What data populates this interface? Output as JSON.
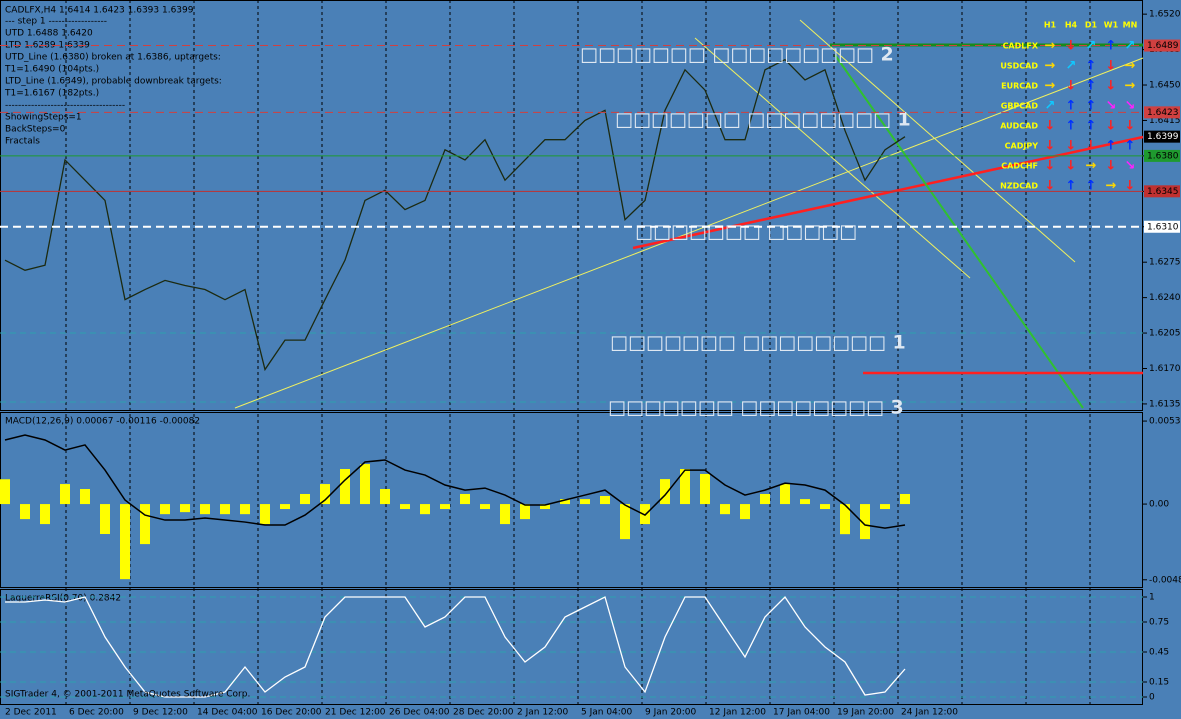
{
  "chart_data": [
    {
      "type": "line",
      "title": "CADLFX,H4  1.6414 1.6423 1.6393 1.6399",
      "info": [
        "---   step 1   ------------------",
        "UTD  1.6488  1.6420",
        "LTD  1.6289  1.6339",
        "UTD_Line (1.6380) broken at 1.6386, uptargets:",
        "T1=1.6490 (104pts.)",
        "LTD_Line (1.6349), probable downbreak targets:",
        "T1=1.6167 (182pts.)",
        "-------------------------------------",
        "ShowingSteps=1",
        "BackSteps=0",
        "Fractals"
      ],
      "color": "#1c2a10",
      "values": [
        1.6277,
        1.6267,
        1.6272,
        1.6376,
        1.6356,
        1.6336,
        1.6238,
        1.6248,
        1.6257,
        1.6252,
        1.6248,
        1.6238,
        1.6248,
        1.6169,
        1.6198,
        1.6198,
        1.6238,
        1.6277,
        1.6336,
        1.6346,
        1.6327,
        1.6336,
        1.6386,
        1.6376,
        1.6396,
        1.6356,
        1.6376,
        1.6396,
        1.6396,
        1.6415,
        1.6425,
        1.6317,
        1.6336,
        1.6425,
        1.6465,
        1.6445,
        1.6396,
        1.6396,
        1.6465,
        1.6475,
        1.6455,
        1.6465,
        1.6405,
        1.6356,
        1.6386,
        1.6399
      ],
      "ylim": [
        1.6129,
        1.6532
      ],
      "yticks": [
        {
          "value": 1.652,
          "label": "1.6520"
        },
        1.6485,
        {
          "value": 1.645,
          "label": "1.6450"
        },
        1.6415,
        {
          "value": 1.638,
          "label": "1.6380"
        },
        1.6345,
        {
          "value": 1.631,
          "label": "1.6310"
        },
        1.6275,
        {
          "value": 1.624,
          "label": "1.6240"
        },
        1.6205,
        {
          "value": 1.617,
          "label": "1.6170"
        },
        1.6135
      ],
      "levels": [
        {
          "value": 1.6489,
          "label": "1.6489",
          "color": "#d04040",
          "style": "dashed"
        },
        {
          "value": 1.6423,
          "label": "1.6423",
          "color": "#d04040",
          "style": "dashed"
        },
        {
          "value": 1.6399,
          "label": "1.6399",
          "color": "#000000",
          "style": "none"
        },
        {
          "value": 1.638,
          "label": "1.6380",
          "color": "#1f9a2f",
          "style": "solid"
        },
        {
          "value": 1.6345,
          "label": "1.6345",
          "color": "#c03030",
          "style": "solid"
        },
        {
          "value": 1.631,
          "label": "1.6310",
          "color": "#ffffff",
          "style": "dashed"
        }
      ],
      "zone_labels": [
        "□□□□□□□ □□□□□□□□□ 2",
        "□□□□□□□ □□□□□□□□ 1",
        "□□□□□□□ □□□□□",
        "□□□□□□□ □□□□□□□□ 1",
        "□□□□□□□ □□□□□□□□ 3"
      ]
    },
    {
      "type": "macd",
      "title": "MACD(12,26,9) 0.00067 -0.00116 -0.00082",
      "color": "#ffff00",
      "values": [
        0.0016,
        -0.00097,
        -0.00129,
        0.00129,
        0.00097,
        -0.00193,
        -0.00484,
        -0.00258,
        -0.00065,
        -0.00052,
        -0.00065,
        -0.00065,
        -0.00065,
        -0.00129,
        -0.00032,
        0.00065,
        0.00129,
        0.00226,
        0.00258,
        0.00097,
        -0.00032,
        -0.00065,
        -0.00032,
        0.00065,
        -0.00032,
        -0.00129,
        -0.00097,
        -0.00032,
        0.00032,
        0.00032,
        0.00052,
        -0.00226,
        -0.00129,
        0.00161,
        0.00226,
        0.00194,
        -0.00065,
        -0.00097,
        0.00065,
        0.00129,
        0.00032,
        -0.00032,
        -0.00194,
        -0.00226,
        -0.00032,
        0.00065
      ],
      "series": [
        {
          "color": "#000000",
          "values": [
            0.00413,
            0.00445,
            0.00413,
            0.00348,
            0.00381,
            0.00219,
            0.00026,
            -0.00071,
            -0.00103,
            -0.00103,
            -0.0009,
            -0.00103,
            -0.00116,
            -0.00135,
            -0.00135,
            -0.00071,
            0.00026,
            0.00155,
            0.00271,
            0.00284,
            0.00219,
            0.00187,
            0.00123,
            0.0009,
            0.00103,
            0.00058,
            -6e-05,
            -6e-05,
            0.00026,
            0.00058,
            0.0009,
            -6e-05,
            -0.00071,
            0.00058,
            0.00219,
            0.00219,
            0.00123,
            0.00058,
            0.0009,
            0.00135,
            0.00123,
            0.0009,
            -6e-05,
            -0.00135,
            -0.00155,
            -0.00135
          ]
        }
      ],
      "ylim": [
        -0.00541,
        0.00587
      ],
      "yticks": [
        0.00535,
        {
          "value": 0,
          "label": "0.00"
        },
        -0.00488
      ]
    },
    {
      "type": "line",
      "title": "LaguerreRSI(0.70) 0.2842",
      "color": "#ffffff",
      "values": [
        0.95,
        0.95,
        0.97,
        0.95,
        1,
        0.6,
        0.3,
        0.05,
        0,
        0,
        0,
        0.05,
        0.3,
        0.05,
        0.2,
        0.3,
        0.8,
        1,
        1,
        1,
        1,
        0.7,
        0.8,
        1,
        1,
        0.6,
        0.35,
        0.5,
        0.8,
        0.9,
        1,
        0.3,
        0.05,
        0.6,
        1,
        1,
        0.7,
        0.4,
        0.8,
        1,
        0.7,
        0.5,
        0.35,
        0.02,
        0.05,
        0.28
      ],
      "ylim": [
        -0.08,
        1.07
      ],
      "yticks": [
        1,
        0.75,
        0.45,
        0.15,
        0
      ],
      "grid": true
    }
  ],
  "time_axis": [
    "2 Dec 2011",
    "6 Dec 20:00",
    "9 Dec 12:00",
    "14 Dec 04:00",
    "16 Dec 20:00",
    "21 Dec 12:00",
    "26 Dec 04:00",
    "28 Dec 20:00",
    "2 Jan 12:00",
    "5 Jan 04:00",
    "9 Jan 20:00",
    "12 Jan 12:00",
    "17 Jan 04:00",
    "19 Jan 20:00",
    "24 Jan 12:00"
  ],
  "footer": "SIGTrader 4, © 2001-2011 MetaQuotes Software Corp.",
  "strength_table": {
    "headers": [
      "H1",
      "H4",
      "D1",
      "W1",
      "MN"
    ],
    "rows": [
      {
        "pair": "CADLFX",
        "arrows": [
          "→",
          "↓",
          "↗",
          "↑",
          "↗"
        ]
      },
      {
        "pair": "USDCAD",
        "arrows": [
          "→",
          "↗",
          "↑",
          "↓",
          "→"
        ]
      },
      {
        "pair": "EURCAD",
        "arrows": [
          "→",
          "↓",
          "↑",
          "↓",
          "→"
        ]
      },
      {
        "pair": "GBPCAD",
        "arrows": [
          "↗",
          "↑",
          "↑",
          "↘",
          "↘"
        ]
      },
      {
        "pair": "AUDCAD",
        "arrows": [
          "↓",
          "↑",
          "↑",
          "↓",
          "↓"
        ]
      },
      {
        "pair": "CADJPY",
        "arrows": [
          "↓",
          "↓",
          "↓",
          "↑",
          "↑"
        ]
      },
      {
        "pair": "CADCHF",
        "arrows": [
          "↓",
          "↓",
          "→",
          "↓",
          "↘"
        ]
      },
      {
        "pair": "NZDCAD",
        "arrows": [
          "↓",
          "↑",
          "↑",
          "→",
          "↓"
        ]
      }
    ]
  }
}
